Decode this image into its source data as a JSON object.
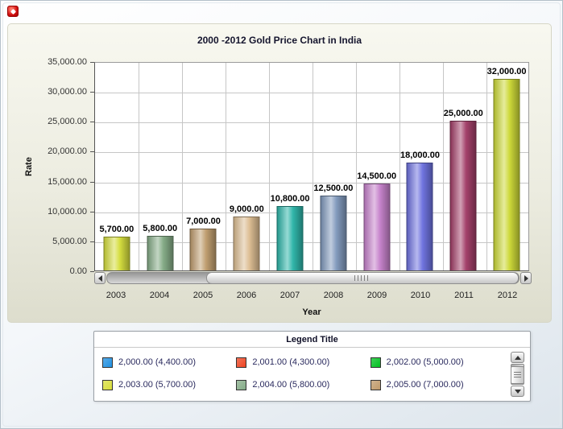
{
  "chart_data": {
    "type": "bar",
    "title": "2000 -2012 Gold Price Chart in India",
    "xlabel": "Year",
    "ylabel": "Rate",
    "ylim": [
      0,
      35000
    ],
    "ytick_step": 5000,
    "ytick_labels": [
      "0.00",
      "5,000.00",
      "10,000.00",
      "15,000.00",
      "20,000.00",
      "25,000.00",
      "30,000.00",
      "35,000.00"
    ],
    "categories": [
      "2003",
      "2004",
      "2005",
      "2006",
      "2007",
      "2008",
      "2009",
      "2010",
      "2011",
      "2012"
    ],
    "values": [
      5700,
      5800,
      7000,
      9000,
      10800,
      12500,
      14500,
      18000,
      25000,
      32000
    ],
    "value_labels": [
      "5,700.00",
      "5,800.00",
      "7,000.00",
      "9,000.00",
      "10,800.00",
      "12,500.00",
      "14,500.00",
      "18,000.00",
      "25,000.00",
      "32,000.00"
    ],
    "bar_colors": [
      "#d4dd3c",
      "#84ab86",
      "#bf9d6e",
      "#dcbd92",
      "#2db4a8",
      "#8099bc",
      "#c681cb",
      "#6d71de",
      "#a23e68",
      "#ccd836"
    ],
    "grid": true,
    "legend_position": "bottom"
  },
  "legend": {
    "title": "Legend Title",
    "entries": [
      {
        "label": "2,000.00 (4,400.00)",
        "color": "#1f8fe0"
      },
      {
        "label": "2,001.00 (4,300.00)",
        "color": "#ee4422"
      },
      {
        "label": "2,002.00 (5,000.00)",
        "color": "#00c020"
      },
      {
        "label": "2,003.00 (5,700.00)",
        "color": "#d8de3a"
      },
      {
        "label": "2,004.00 (5,800.00)",
        "color": "#85ac88"
      },
      {
        "label": "2,005.00 (7,000.00)",
        "color": "#c09a6a"
      }
    ]
  }
}
